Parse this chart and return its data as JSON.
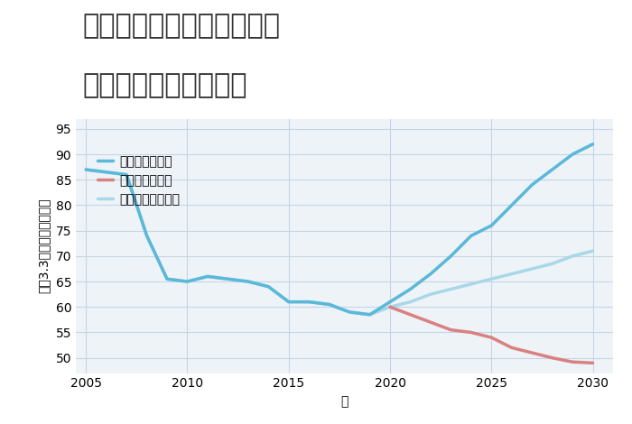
{
  "title_line1": "三重県津市久居西鷹跡町の",
  "title_line2": "中古戸建ての価格推移",
  "xlabel": "年",
  "ylabel": "坪（3.3㎡）単価（万円）",
  "ylim": [
    47,
    97
  ],
  "xlim": [
    2004.5,
    2031
  ],
  "yticks": [
    50,
    55,
    60,
    65,
    70,
    75,
    80,
    85,
    90,
    95
  ],
  "xticks": [
    2005,
    2010,
    2015,
    2020,
    2025,
    2030
  ],
  "good_scenario": {
    "label": "グッドシナリオ",
    "color": "#5ab8d8",
    "linewidth": 2.5,
    "x": [
      2005,
      2006,
      2007,
      2008,
      2009,
      2010,
      2011,
      2012,
      2013,
      2014,
      2015,
      2016,
      2017,
      2018,
      2019,
      2020,
      2021,
      2022,
      2023,
      2024,
      2025,
      2026,
      2027,
      2028,
      2029,
      2030
    ],
    "y": [
      87,
      86.5,
      86,
      74,
      65.5,
      65,
      66,
      65.5,
      65,
      64,
      61,
      61,
      60.5,
      59,
      58.5,
      61,
      63.5,
      66.5,
      70,
      74,
      76,
      80,
      84,
      87,
      90,
      92
    ]
  },
  "bad_scenario": {
    "label": "バッドシナリオ",
    "color": "#d98080",
    "linewidth": 2.5,
    "x": [
      2020,
      2021,
      2022,
      2023,
      2024,
      2025,
      2026,
      2027,
      2028,
      2029,
      2030
    ],
    "y": [
      60,
      58.5,
      57,
      55.5,
      55,
      54,
      52,
      51,
      50,
      49.2,
      49
    ]
  },
  "normal_scenario": {
    "label": "ノーマルシナリオ",
    "color": "#a8d8e8",
    "linewidth": 2.5,
    "x": [
      2005,
      2006,
      2007,
      2008,
      2009,
      2010,
      2011,
      2012,
      2013,
      2014,
      2015,
      2016,
      2017,
      2018,
      2019,
      2020,
      2021,
      2022,
      2023,
      2024,
      2025,
      2026,
      2027,
      2028,
      2029,
      2030
    ],
    "y": [
      87,
      86.5,
      86,
      74,
      65.5,
      65,
      66,
      65.5,
      65,
      64,
      61,
      61,
      60.5,
      59,
      58.5,
      60,
      61,
      62.5,
      63.5,
      64.5,
      65.5,
      66.5,
      67.5,
      68.5,
      70,
      71
    ]
  },
  "fig_bg": "#ffffff",
  "plot_bg": "#eef3f8",
  "grid_color": "#c5d5e5",
  "title_fontsize": 22,
  "tick_fontsize": 10,
  "label_fontsize": 10,
  "legend_fontsize": 10
}
